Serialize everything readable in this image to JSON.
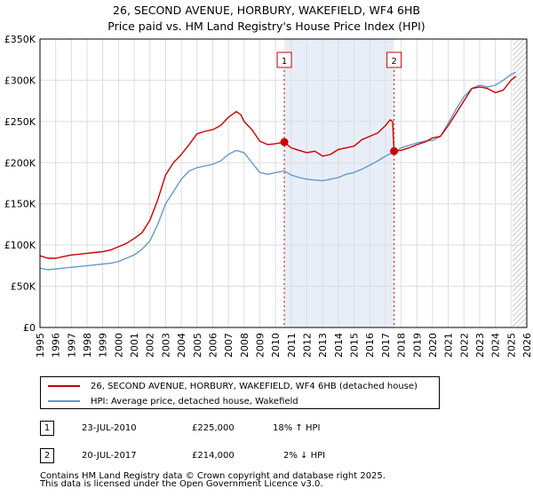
{
  "chart_data": {
    "type": "line",
    "title": "26, SECOND AVENUE, HORBURY, WAKEFIELD, WF4 6HB",
    "subtitle": "Price paid vs. HM Land Registry's House Price Index (HPI)",
    "ylim": [
      0,
      350000
    ],
    "xlim": [
      1995,
      2026
    ],
    "y_ticks": [
      {
        "value": 0,
        "label": "£0"
      },
      {
        "value": 50000,
        "label": "£50K"
      },
      {
        "value": 100000,
        "label": "£100K"
      },
      {
        "value": 150000,
        "label": "£150K"
      },
      {
        "value": 200000,
        "label": "£200K"
      },
      {
        "value": 250000,
        "label": "£250K"
      },
      {
        "value": 300000,
        "label": "£300K"
      },
      {
        "value": 350000,
        "label": "£350K"
      }
    ],
    "x_ticks": [
      "1995",
      "1996",
      "1997",
      "1998",
      "1999",
      "2000",
      "2001",
      "2002",
      "2003",
      "2004",
      "2005",
      "2006",
      "2007",
      "2008",
      "2009",
      "2010",
      "2011",
      "2012",
      "2013",
      "2014",
      "2015",
      "2016",
      "2017",
      "2018",
      "2019",
      "2020",
      "2021",
      "2022",
      "2023",
      "2024",
      "2025",
      "2026"
    ],
    "grid": true,
    "series": [
      {
        "name": "26, SECOND AVENUE, HORBURY, WAKEFIELD, WF4 6HB (detached house)",
        "color": "#cc0000",
        "x": [
          1995.0,
          1995.5,
          1996.0,
          1996.5,
          1997.0,
          1997.5,
          1998.0,
          1998.5,
          1999.0,
          1999.5,
          2000.0,
          2000.5,
          2001.0,
          2001.5,
          2002.0,
          2002.5,
          2003.0,
          2003.5,
          2004.0,
          2004.5,
          2005.0,
          2005.5,
          2006.0,
          2006.5,
          2007.0,
          2007.5,
          2007.8,
          2008.0,
          2008.5,
          2009.0,
          2009.5,
          2010.0,
          2010.56,
          2011.0,
          2011.5,
          2012.0,
          2012.5,
          2013.0,
          2013.5,
          2014.0,
          2014.5,
          2015.0,
          2015.5,
          2016.0,
          2016.5,
          2017.0,
          2017.3,
          2017.45,
          2017.55,
          2018.0,
          2018.5,
          2019.0,
          2019.5,
          2020.0,
          2020.5,
          2021.0,
          2021.5,
          2022.0,
          2022.5,
          2023.0,
          2023.5,
          2024.0,
          2024.5,
          2025.0,
          2025.3
        ],
        "values": [
          87000,
          84000,
          84000,
          86000,
          88000,
          89000,
          90000,
          91000,
          92000,
          94000,
          98000,
          102000,
          108000,
          115000,
          130000,
          155000,
          185000,
          200000,
          210000,
          222000,
          235000,
          238000,
          240000,
          245000,
          255000,
          262000,
          258000,
          250000,
          240000,
          226000,
          222000,
          223000,
          225000,
          218000,
          215000,
          212000,
          214000,
          208000,
          210000,
          216000,
          218000,
          220000,
          228000,
          232000,
          236000,
          245000,
          252000,
          250000,
          214000,
          215000,
          218000,
          222000,
          225000,
          230000,
          232000,
          245000,
          260000,
          275000,
          290000,
          292000,
          290000,
          285000,
          288000,
          300000,
          305000
        ]
      },
      {
        "name": "HPI: Average price, detached house, Wakefield",
        "color": "#6699cc",
        "x": [
          1995.0,
          1995.5,
          1996.0,
          1996.5,
          1997.0,
          1997.5,
          1998.0,
          1998.5,
          1999.0,
          1999.5,
          2000.0,
          2000.5,
          2001.0,
          2001.5,
          2002.0,
          2002.5,
          2003.0,
          2003.5,
          2004.0,
          2004.5,
          2005.0,
          2005.5,
          2006.0,
          2006.5,
          2007.0,
          2007.5,
          2008.0,
          2008.5,
          2009.0,
          2009.5,
          2010.0,
          2010.56,
          2011.0,
          2011.5,
          2012.0,
          2012.5,
          2013.0,
          2013.5,
          2014.0,
          2014.5,
          2015.0,
          2015.5,
          2016.0,
          2016.5,
          2017.0,
          2017.55,
          2018.0,
          2018.5,
          2019.0,
          2019.5,
          2020.0,
          2020.5,
          2021.0,
          2021.5,
          2022.0,
          2022.5,
          2023.0,
          2023.5,
          2024.0,
          2024.5,
          2025.0,
          2025.3
        ],
        "values": [
          72000,
          70000,
          71000,
          72000,
          73000,
          74000,
          75000,
          76000,
          77000,
          78000,
          80000,
          84000,
          88000,
          95000,
          105000,
          125000,
          150000,
          165000,
          180000,
          190000,
          194000,
          196000,
          198000,
          202000,
          210000,
          215000,
          212000,
          200000,
          188000,
          186000,
          188000,
          190000,
          185000,
          182000,
          180000,
          179000,
          178000,
          180000,
          182000,
          186000,
          188000,
          192000,
          197000,
          202000,
          208000,
          213000,
          218000,
          221000,
          224000,
          226000,
          227000,
          232000,
          248000,
          265000,
          280000,
          290000,
          294000,
          292000,
          294000,
          300000,
          307000,
          310000
        ]
      }
    ],
    "sales": [
      {
        "label": "1",
        "year": 2010.56,
        "price": 225000,
        "date": "23-JUL-2010",
        "price_text": "£225,000",
        "hpi_text": "18% ↑ HPI"
      },
      {
        "label": "2",
        "year": 2017.55,
        "price": 214000,
        "date": "20-JUL-2017",
        "price_text": "£214,000",
        "hpi_text": "2% ↓ HPI"
      }
    ],
    "highlight": {
      "from": 2010.56,
      "to": 2017.55,
      "color": "#e8eef8"
    },
    "future_hatch_from": 2025.1
  },
  "legend": {
    "property_label": "26, SECOND AVENUE, HORBURY, WAKEFIELD, WF4 6HB (detached house)",
    "hpi_label": "HPI: Average price, detached house, Wakefield",
    "property_color": "#cc0000",
    "hpi_color": "#6699cc"
  },
  "footer": {
    "line1": "Contains HM Land Registry data © Crown copyright and database right 2025.",
    "line2": "This data is licensed under the Open Government Licence v3.0."
  }
}
